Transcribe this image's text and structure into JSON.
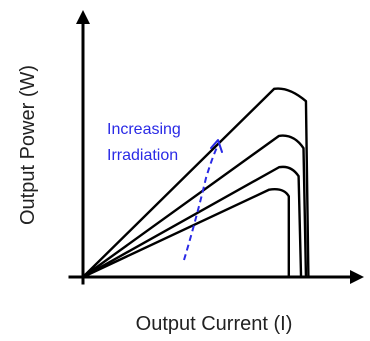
{
  "chart_data": {
    "type": "line",
    "title": "",
    "xlabel": "Output Current (I)",
    "ylabel": "Output Power (W)",
    "grid": false,
    "legend": "none",
    "axis_ticks": "none",
    "series_color": "#000000",
    "annotation": {
      "text_line1": "Increasing",
      "text_line2": "Irradiation",
      "color": "#2a2ae6",
      "style": "dashed-arrow-up"
    },
    "series": [
      {
        "points": [
          [
            0,
            0
          ],
          [
            0.76,
            0.78
          ],
          [
            0.82,
            0.8
          ],
          [
            0.84,
            0.72
          ],
          [
            0.84,
            0.0
          ]
        ]
      },
      {
        "points": [
          [
            0,
            0
          ],
          [
            0.8,
            0.98
          ],
          [
            0.85,
            1.0
          ],
          [
            0.88,
            0.9
          ],
          [
            0.89,
            0.0
          ]
        ]
      },
      {
        "points": [
          [
            0,
            0
          ],
          [
            0.8,
            1.26
          ],
          [
            0.86,
            1.28
          ],
          [
            0.9,
            1.15
          ],
          [
            0.91,
            0.0
          ]
        ]
      },
      {
        "points": [
          [
            0,
            0
          ],
          [
            0.78,
            1.68
          ],
          [
            0.84,
            1.7
          ],
          [
            0.91,
            1.57
          ],
          [
            0.92,
            0.0
          ]
        ]
      }
    ],
    "xlim": [
      0,
      1.0
    ],
    "ylim": [
      0,
      2.4
    ]
  }
}
